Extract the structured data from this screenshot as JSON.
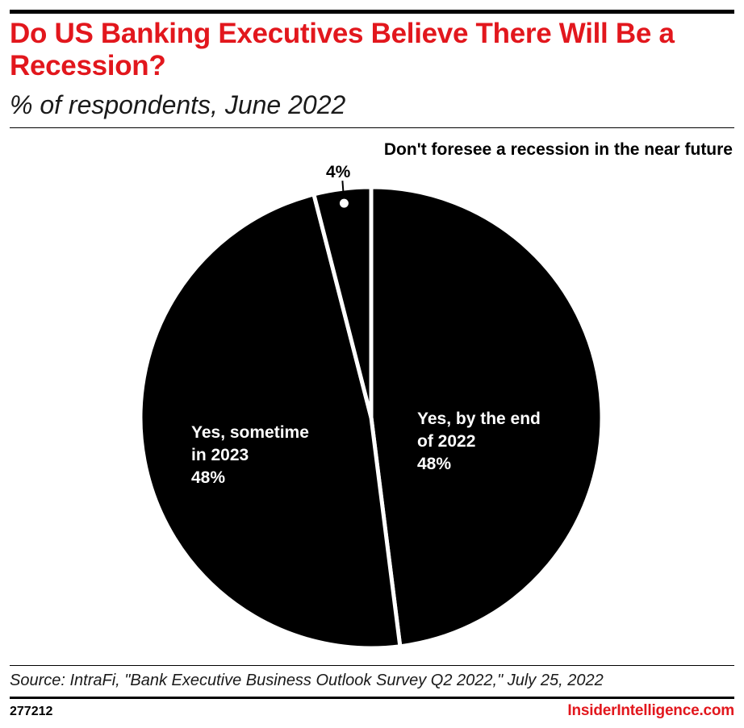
{
  "header": {
    "title": "Do US Banking Executives Believe There Will Be a Recession?",
    "subtitle": "% of respondents, June 2022"
  },
  "chart_data": {
    "type": "pie",
    "title": "Do US Banking Executives Believe There Will Be a Recession?",
    "subtitle": "% of respondents, June 2022",
    "slices": [
      {
        "label_lines": [
          "Yes, by the end",
          "of 2022"
        ],
        "value": 48,
        "value_label": "48%",
        "color": "#000000"
      },
      {
        "label_lines": [
          "Yes, sometime",
          "in 2023"
        ],
        "value": 48,
        "value_label": "48%",
        "color": "#000000"
      },
      {
        "label_lines": [
          "Don't foresee a recession in the near future"
        ],
        "value": 4,
        "value_label": "4%",
        "color": "#000000"
      }
    ],
    "separator_color": "#ffffff",
    "label_color_inside": "#ffffff",
    "label_color_outside": "#000000"
  },
  "footer": {
    "source": "Source: IntraFi, \"Bank Executive Business Outlook Survey Q2 2022,\" July 25, 2022",
    "chart_id": "277212",
    "brand": "InsiderIntelligence.com"
  },
  "colors": {
    "accent": "#e2171d",
    "ink": "#000000"
  }
}
